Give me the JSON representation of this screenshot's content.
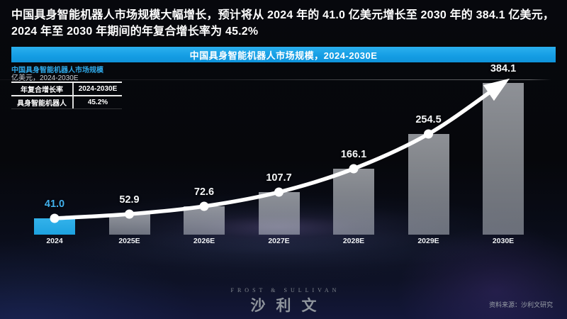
{
  "headline": "中国具身智能机器人市场规模大幅增长，预计将从 2024 年的 41.0 亿美元增长至 2030 年的 384.1 亿美元，2024 年至 2030 年期间的年复合增长率为 45.2%",
  "banner": {
    "title": "中国具身智能机器人市场规模，2024-2030E"
  },
  "chart_header": {
    "title": "中国具身智能机器人市场规模",
    "unit": "亿美元，2024-2030E"
  },
  "cagr_table": {
    "col1_header": "年复合增长率",
    "col2_header": "2024-2030E",
    "row_label": "具身智能机器人",
    "row_value": "45.2%"
  },
  "chart_data": {
    "type": "bar",
    "overlay": "line-with-arrow",
    "title": "中国具身智能机器人市场规模，2024-2030E",
    "unit": "亿美元",
    "categories": [
      "2024",
      "2025E",
      "2026E",
      "2027E",
      "2028E",
      "2029E",
      "2030E"
    ],
    "series": [
      {
        "name": "具身智能机器人",
        "values": [
          41.0,
          52.9,
          72.6,
          107.7,
          166.1,
          254.5,
          384.1
        ]
      }
    ],
    "value_labels": [
      "41.0",
      "52.9",
      "72.6",
      "107.7",
      "166.1",
      "254.5",
      "384.1"
    ],
    "highlight_category": "2024",
    "cagr_2024_2030e": "45.2%",
    "ylim": [
      0,
      384.1
    ],
    "grid": false,
    "legend": "none"
  },
  "footer": {
    "brand_en": "FROST & SULLIVAN",
    "brand_cn": "沙利文",
    "source": "资料来源：沙利文研究"
  },
  "colors": {
    "accent_blue": "#29abe2",
    "value_label_blue": "#41b0ec",
    "bar_gray": "rgba(225,230,236,0.55)",
    "line_white": "#ffffff",
    "background": "#06070b"
  }
}
